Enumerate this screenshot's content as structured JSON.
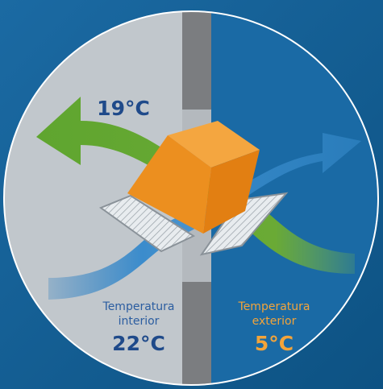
{
  "top_label": "19°C",
  "interior": {
    "caption": [
      "Temperatura",
      "interior"
    ],
    "temperature": "22°C"
  },
  "exterior": {
    "caption": [
      "Temperatura",
      "exterior"
    ],
    "temperature": "5°C"
  }
}
